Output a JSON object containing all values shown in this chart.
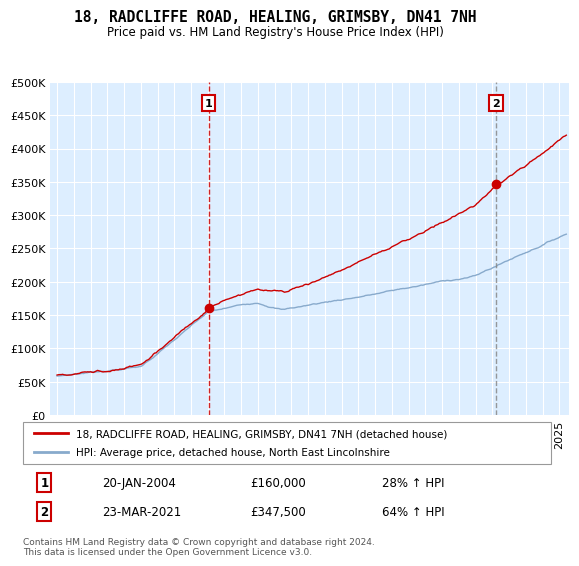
{
  "title": "18, RADCLIFFE ROAD, HEALING, GRIMSBY, DN41 7NH",
  "subtitle": "Price paid vs. HM Land Registry's House Price Index (HPI)",
  "legend_label_red": "18, RADCLIFFE ROAD, HEALING, GRIMSBY, DN41 7NH (detached house)",
  "legend_label_blue": "HPI: Average price, detached house, North East Lincolnshire",
  "annotation1_date": "20-JAN-2004",
  "annotation1_price": "£160,000",
  "annotation1_hpi": "28% ↑ HPI",
  "annotation2_date": "23-MAR-2021",
  "annotation2_price": "£347,500",
  "annotation2_hpi": "64% ↑ HPI",
  "footer": "Contains HM Land Registry data © Crown copyright and database right 2024.\nThis data is licensed under the Open Government Licence v3.0.",
  "red_color": "#cc0000",
  "blue_color": "#88aacc",
  "vline_color": "#cc0000",
  "plot_bg_color": "#ddeeff",
  "grid_color": "#ffffff",
  "ylim": [
    0,
    500000
  ],
  "yticks": [
    0,
    50000,
    100000,
    150000,
    200000,
    250000,
    300000,
    350000,
    400000,
    450000,
    500000
  ],
  "sale1_year": 2004.05,
  "sale1_price": 160000,
  "sale2_year": 2021.21,
  "sale2_price": 347500
}
